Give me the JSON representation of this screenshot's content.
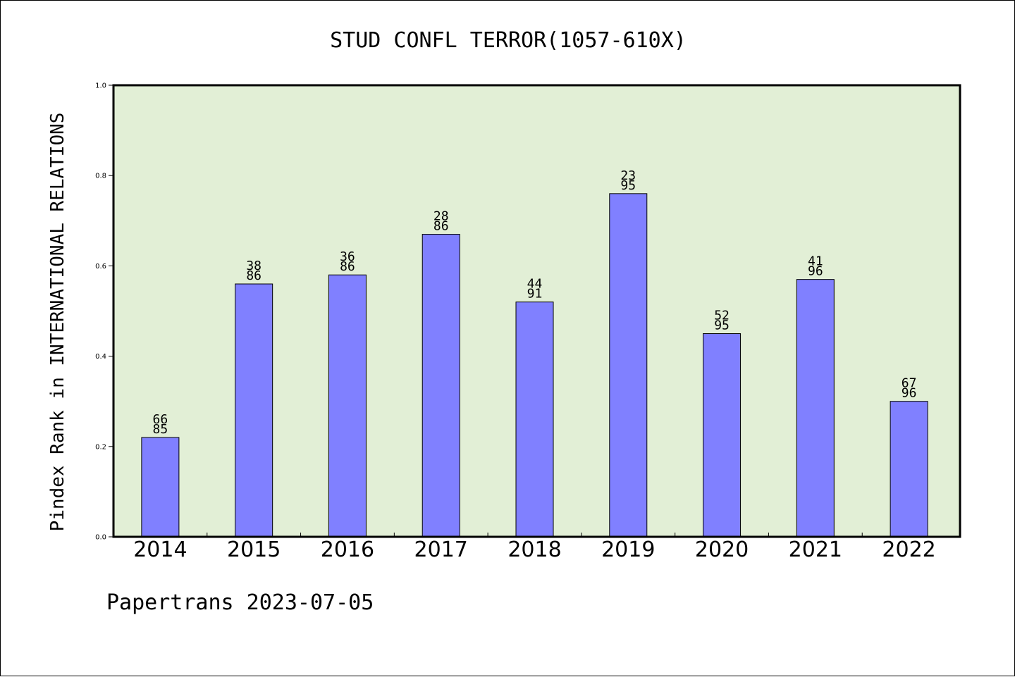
{
  "chart_data": {
    "type": "bar",
    "title": "STUD CONFL TERROR(1057-610X)",
    "xlabel": "",
    "ylabel": "Pindex Rank in INTERNATIONAL RELATIONS",
    "ylim": [
      0,
      1.0
    ],
    "yticks": [
      "0.0",
      "0.2",
      "0.4",
      "0.6",
      "0.8",
      "1.0"
    ],
    "categories": [
      "2014",
      "2015",
      "2016",
      "2017",
      "2018",
      "2019",
      "2020",
      "2021",
      "2022"
    ],
    "values": [
      0.22,
      0.56,
      0.58,
      0.67,
      0.52,
      0.76,
      0.45,
      0.57,
      0.3
    ],
    "bar_labels": [
      [
        "66",
        "85"
      ],
      [
        "38",
        "86"
      ],
      [
        "36",
        "86"
      ],
      [
        "28",
        "86"
      ],
      [
        "44",
        "91"
      ],
      [
        "23",
        "95"
      ],
      [
        "52",
        "95"
      ],
      [
        "41",
        "96"
      ],
      [
        "67",
        "96"
      ]
    ],
    "grid": false,
    "colors": {
      "bar": "#8080ff",
      "plot_background": "#e2efd6",
      "edge": "#000000"
    }
  },
  "footer": "Papertrans 2023-07-05"
}
